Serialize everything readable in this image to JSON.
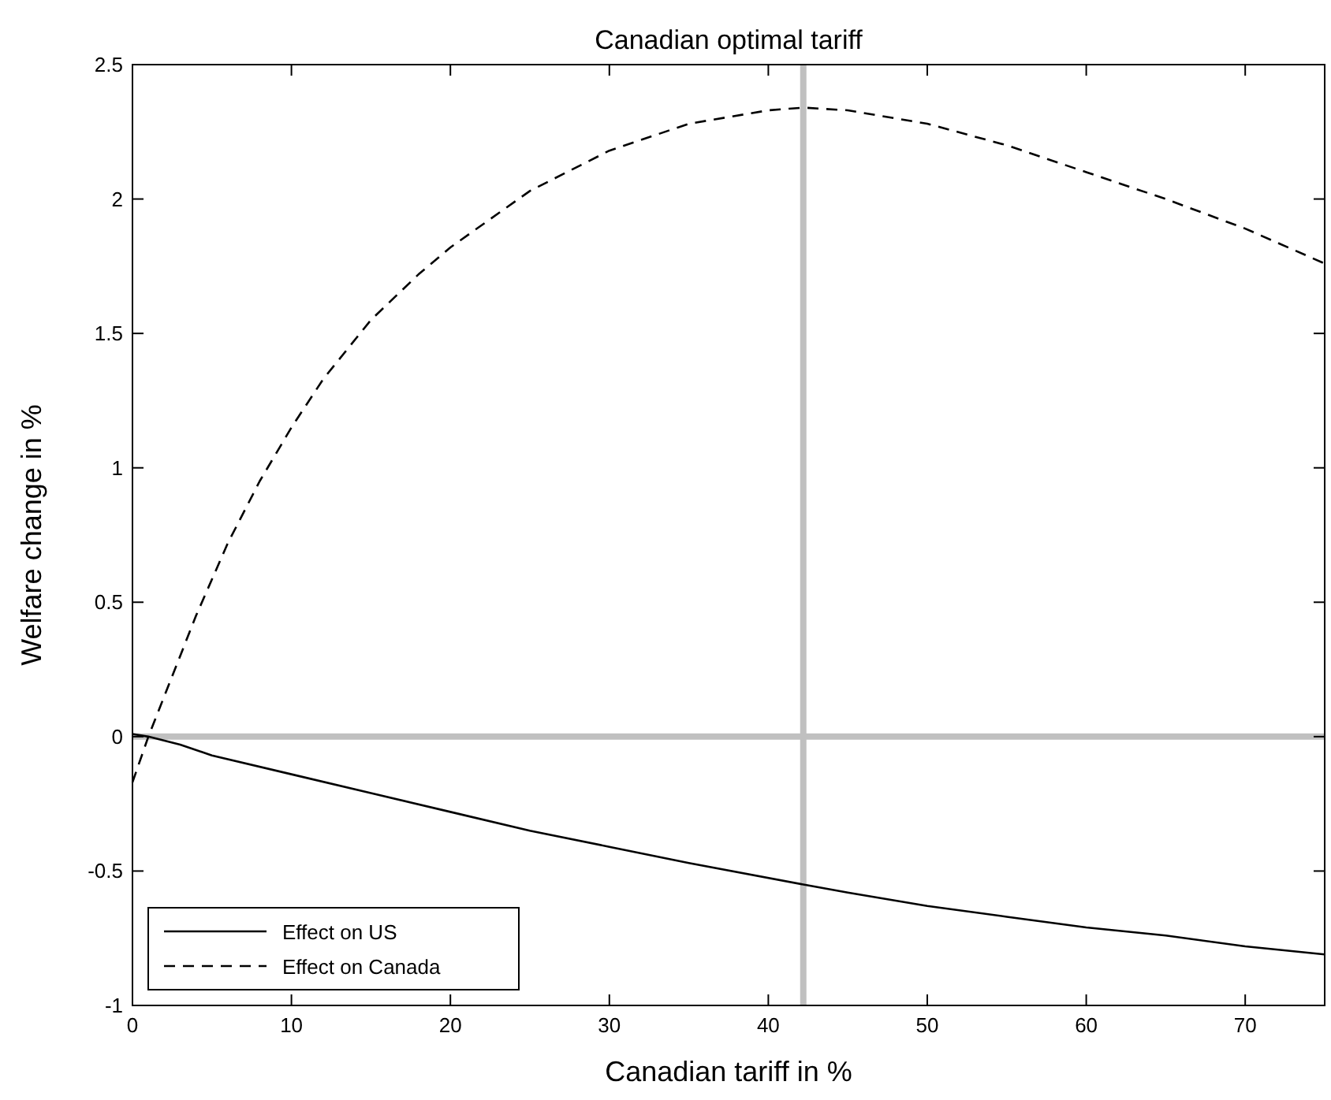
{
  "chart_data": {
    "type": "line",
    "title": "Canadian optimal tariff",
    "xlabel": "Canadian tariff in %",
    "ylabel": "Welfare change in %",
    "xlim": [
      0,
      75
    ],
    "xticks": [
      0,
      10,
      20,
      30,
      40,
      50,
      60,
      70
    ],
    "ylim": [
      -1,
      2.5
    ],
    "yticks": [
      -1,
      -0.5,
      0,
      0.5,
      1,
      1.5,
      2,
      2.5
    ],
    "legend": "bottom left",
    "grid": false,
    "series": [
      {
        "name": "Effect on US",
        "color": "#000000",
        "line_style": "solid",
        "x": [
          0,
          1,
          3,
          5,
          10,
          15,
          20,
          25,
          30,
          35,
          42.2,
          45,
          50,
          55,
          60,
          65,
          70,
          75
        ],
        "values": [
          0.01,
          0,
          -0.03,
          -0.07,
          -0.14,
          -0.21,
          -0.28,
          -0.35,
          -0.41,
          -0.47,
          -0.55,
          -0.58,
          -0.63,
          -0.67,
          -0.71,
          -0.74,
          -0.78,
          -0.81
        ]
      },
      {
        "name": "Effect on Canada",
        "color": "#000000",
        "line_style": "dashed",
        "x": [
          0,
          1,
          2,
          4,
          6,
          8,
          10,
          12,
          15,
          18,
          20,
          25,
          30,
          35,
          40,
          42.2,
          45,
          50,
          55,
          60,
          65,
          70,
          75
        ],
        "values": [
          -0.17,
          0,
          0.15,
          0.45,
          0.72,
          0.95,
          1.15,
          1.33,
          1.55,
          1.72,
          1.82,
          2.03,
          2.18,
          2.28,
          2.33,
          2.34,
          2.33,
          2.28,
          2.2,
          2.1,
          2.0,
          1.89,
          1.76
        ]
      }
    ],
    "ref_lines": [
      {
        "axis": "x",
        "value": 42.2,
        "color": "#c0c0c0"
      },
      {
        "axis": "y",
        "value": 0,
        "color": "#c0c0c0"
      }
    ]
  }
}
